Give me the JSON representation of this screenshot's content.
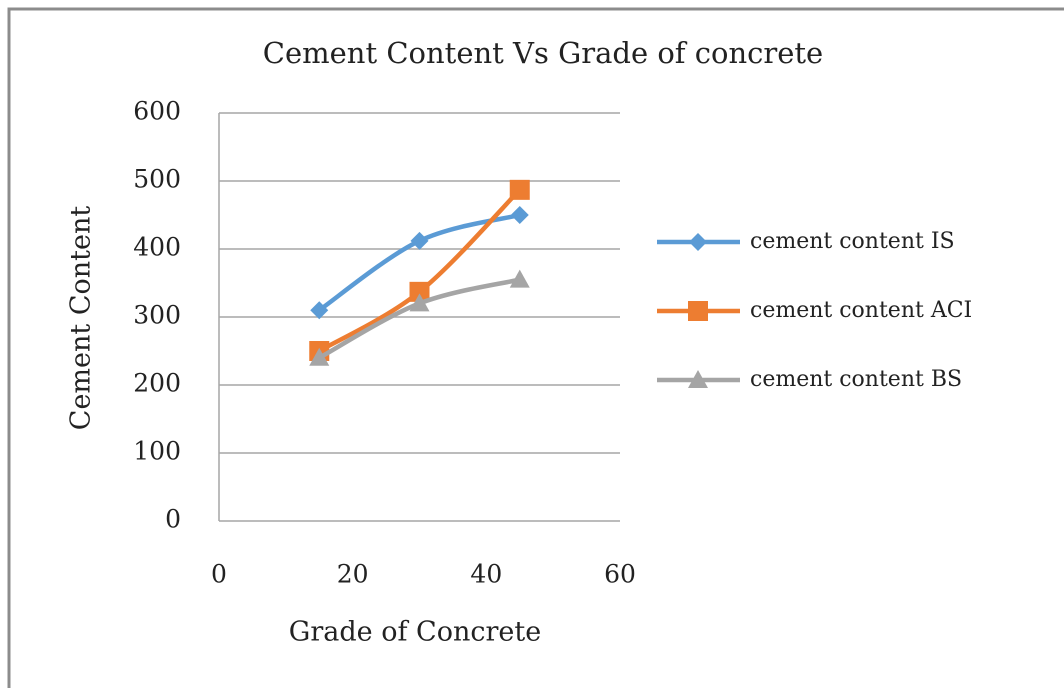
{
  "chart_data": {
    "type": "scatter-line",
    "title": "Cement Content Vs Grade of concrete",
    "x_label": "Grade of Concrete",
    "y_label": "Cement Content",
    "x": [
      15,
      30,
      45
    ],
    "series": [
      {
        "name": "cement content IS",
        "color": "#5b9bd5",
        "marker": "diamond",
        "values": [
          310,
          412,
          450
        ]
      },
      {
        "name": "cement content ACI",
        "color": "#ed7d31",
        "marker": "square",
        "values": [
          250,
          337,
          487
        ]
      },
      {
        "name": "cement content BS",
        "color": "#a5a5a5",
        "marker": "triangle",
        "values": [
          240,
          320,
          355
        ]
      }
    ],
    "xlim": [
      0,
      60
    ],
    "xticks": [
      0,
      20,
      40,
      60
    ],
    "ylim": [
      0,
      600
    ],
    "yticks": [
      0,
      100,
      200,
      300,
      400,
      500,
      600
    ],
    "grid": true,
    "smooth": true,
    "legend": "right"
  }
}
